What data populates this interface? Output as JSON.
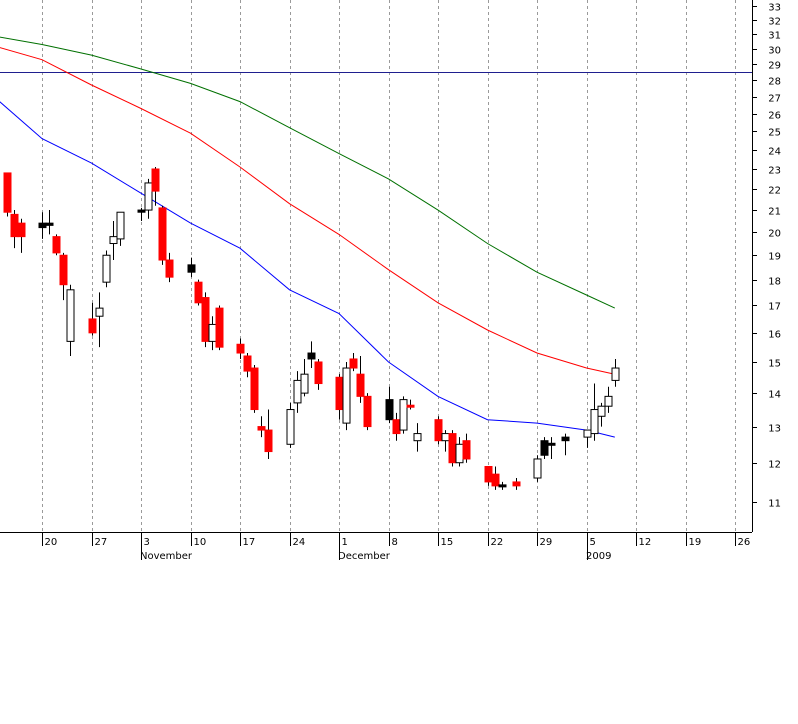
{
  "chart_data": {
    "type": "candlestick",
    "y_axis": {
      "side": "right",
      "scale": "log",
      "ticks": [
        11,
        12,
        13,
        14,
        15,
        16,
        17,
        18,
        19,
        20,
        21,
        22,
        23,
        24,
        25,
        26,
        27,
        28,
        29,
        30,
        31,
        32,
        33
      ],
      "tick_labels": [
        "11",
        "12",
        "13",
        "14",
        "15",
        "16",
        "17",
        "18",
        "19",
        "20",
        "21",
        "22",
        "23",
        "24",
        "25",
        "26",
        "27",
        "28",
        "29",
        "30",
        "31",
        "32",
        "33"
      ],
      "range": [
        10.4,
        33.4
      ]
    },
    "x_axis": {
      "day_ticks": [
        {
          "date": "2008-10-20",
          "label": "20"
        },
        {
          "date": "2008-10-27",
          "label": "27"
        },
        {
          "date": "2008-11-03",
          "label": "3"
        },
        {
          "date": "2008-11-10",
          "label": "10"
        },
        {
          "date": "2008-11-17",
          "label": "17"
        },
        {
          "date": "2008-11-24",
          "label": "24"
        },
        {
          "date": "2008-12-01",
          "label": "1"
        },
        {
          "date": "2008-12-08",
          "label": "8"
        },
        {
          "date": "2008-12-15",
          "label": "15"
        },
        {
          "date": "2008-12-22",
          "label": "22"
        },
        {
          "date": "2008-12-29",
          "label": "29"
        },
        {
          "date": "2009-01-05",
          "label": "5"
        },
        {
          "date": "2009-01-12",
          "label": "12"
        },
        {
          "date": "2009-01-19",
          "label": "19"
        },
        {
          "date": "2009-01-26",
          "label": "26"
        }
      ],
      "period_labels": [
        {
          "date": "2008-11-03",
          "label": "November"
        },
        {
          "date": "2008-12-01",
          "label": "December"
        },
        {
          "date": "2009-01-05",
          "label": "2009"
        }
      ],
      "range": [
        "2008-10-14",
        "2009-01-28"
      ]
    },
    "grid": {
      "vertical_dashed": true,
      "horizontal": false
    },
    "horizontal_line": {
      "value": 28.5,
      "color": "#1f1f8f"
    },
    "colors": {
      "down": "#ff0000",
      "up": "#ffffff",
      "outline": "#000000",
      "black_candle": "#000000"
    },
    "candles": [
      {
        "date": "2008-10-15",
        "open": 22.8,
        "high": 22.8,
        "low": 20.7,
        "close": 20.9,
        "color": "red"
      },
      {
        "date": "2008-10-16",
        "open": 20.8,
        "high": 21.0,
        "low": 19.3,
        "close": 19.8,
        "color": "red"
      },
      {
        "date": "2008-10-17",
        "open": 20.4,
        "high": 20.6,
        "low": 19.1,
        "close": 19.8,
        "color": "red"
      },
      {
        "date": "2008-10-20",
        "open": 20.2,
        "high": 20.9,
        "low": 19.7,
        "close": 20.4,
        "color": "black"
      },
      {
        "date": "2008-10-21",
        "open": 20.4,
        "high": 21.0,
        "low": 19.9,
        "close": 20.3,
        "color": "black"
      },
      {
        "date": "2008-10-22",
        "open": 19.8,
        "high": 19.9,
        "low": 19.0,
        "close": 19.1,
        "color": "red"
      },
      {
        "date": "2008-10-23",
        "open": 19.0,
        "high": 19.1,
        "low": 17.2,
        "close": 17.8,
        "color": "red"
      },
      {
        "date": "2008-10-24",
        "open": 15.7,
        "high": 17.8,
        "low": 15.2,
        "close": 17.6,
        "color": "white"
      },
      {
        "date": "2008-10-27",
        "open": 16.5,
        "high": 17.1,
        "low": 15.9,
        "close": 16.0,
        "color": "red"
      },
      {
        "date": "2008-10-28",
        "open": 16.6,
        "high": 17.5,
        "low": 15.5,
        "close": 16.9,
        "color": "white"
      },
      {
        "date": "2008-10-29",
        "open": 17.9,
        "high": 19.2,
        "low": 17.7,
        "close": 19.0,
        "color": "white"
      },
      {
        "date": "2008-10-30",
        "open": 19.5,
        "high": 20.5,
        "low": 18.8,
        "close": 19.8,
        "color": "white"
      },
      {
        "date": "2008-10-31",
        "open": 19.7,
        "high": 20.9,
        "low": 19.4,
        "close": 20.9,
        "color": "white"
      },
      {
        "date": "2008-11-03",
        "open": 20.9,
        "high": 21.1,
        "low": 20.5,
        "close": 21.0,
        "color": "black"
      },
      {
        "date": "2008-11-04",
        "open": 21.0,
        "high": 22.5,
        "low": 20.6,
        "close": 22.3,
        "color": "white"
      },
      {
        "date": "2008-11-05",
        "open": 23.0,
        "high": 23.1,
        "low": 21.2,
        "close": 21.9,
        "color": "red"
      },
      {
        "date": "2008-11-06",
        "open": 21.1,
        "high": 21.2,
        "low": 18.6,
        "close": 18.8,
        "color": "red"
      },
      {
        "date": "2008-11-07",
        "open": 18.8,
        "high": 19.1,
        "low": 17.9,
        "close": 18.1,
        "color": "red"
      },
      {
        "date": "2008-11-10",
        "open": 18.6,
        "high": 18.9,
        "low": 18.1,
        "close": 18.3,
        "color": "black"
      },
      {
        "date": "2008-11-11",
        "open": 17.9,
        "high": 18.0,
        "low": 17.0,
        "close": 17.1,
        "color": "red"
      },
      {
        "date": "2008-11-12",
        "open": 17.3,
        "high": 17.5,
        "low": 15.5,
        "close": 15.7,
        "color": "red"
      },
      {
        "date": "2008-11-13",
        "open": 15.7,
        "high": 16.6,
        "low": 15.4,
        "close": 16.3,
        "color": "white"
      },
      {
        "date": "2008-11-14",
        "open": 16.9,
        "high": 17.0,
        "low": 15.4,
        "close": 15.5,
        "color": "red"
      },
      {
        "date": "2008-11-17",
        "open": 15.6,
        "high": 15.8,
        "low": 15.1,
        "close": 15.3,
        "color": "red"
      },
      {
        "date": "2008-11-18",
        "open": 15.2,
        "high": 15.3,
        "low": 14.5,
        "close": 14.7,
        "color": "red"
      },
      {
        "date": "2008-11-19",
        "open": 14.8,
        "high": 14.9,
        "low": 13.4,
        "close": 13.5,
        "color": "red"
      },
      {
        "date": "2008-11-20",
        "open": 13.0,
        "high": 13.3,
        "low": 12.7,
        "close": 12.9,
        "color": "red"
      },
      {
        "date": "2008-11-21",
        "open": 12.9,
        "high": 13.5,
        "low": 12.1,
        "close": 12.3,
        "color": "red"
      },
      {
        "date": "2008-11-24",
        "open": 12.5,
        "high": 13.7,
        "low": 12.4,
        "close": 13.5,
        "color": "white"
      },
      {
        "date": "2008-11-25",
        "open": 13.7,
        "high": 14.7,
        "low": 13.4,
        "close": 14.4,
        "color": "white"
      },
      {
        "date": "2008-11-26",
        "open": 14.0,
        "high": 15.1,
        "low": 13.9,
        "close": 14.6,
        "color": "white"
      },
      {
        "date": "2008-11-27",
        "open": 15.1,
        "high": 15.7,
        "low": 14.8,
        "close": 15.3,
        "color": "black"
      },
      {
        "date": "2008-11-28",
        "open": 15.0,
        "high": 15.1,
        "low": 14.1,
        "close": 14.3,
        "color": "red"
      },
      {
        "date": "2008-12-01",
        "open": 14.5,
        "high": 14.6,
        "low": 13.2,
        "close": 13.5,
        "color": "red"
      },
      {
        "date": "2008-12-02",
        "open": 13.1,
        "high": 15.0,
        "low": 12.9,
        "close": 14.8,
        "color": "white"
      },
      {
        "date": "2008-12-03",
        "open": 15.1,
        "high": 15.3,
        "low": 14.7,
        "close": 14.8,
        "color": "red"
      },
      {
        "date": "2008-12-04",
        "open": 14.6,
        "high": 15.2,
        "low": 13.7,
        "close": 13.9,
        "color": "red"
      },
      {
        "date": "2008-12-05",
        "open": 13.9,
        "high": 14.0,
        "low": 12.9,
        "close": 13.0,
        "color": "red"
      },
      {
        "date": "2008-12-08",
        "open": 13.8,
        "high": 14.2,
        "low": 13.1,
        "close": 13.2,
        "color": "black"
      },
      {
        "date": "2008-12-09",
        "open": 13.2,
        "high": 13.4,
        "low": 12.6,
        "close": 12.8,
        "color": "red"
      },
      {
        "date": "2008-12-10",
        "open": 12.9,
        "high": 13.9,
        "low": 12.8,
        "close": 13.8,
        "color": "white"
      },
      {
        "date": "2008-12-11",
        "open": 13.6,
        "high": 13.8,
        "low": 13.5,
        "close": 13.6,
        "color": "red"
      },
      {
        "date": "2008-12-12",
        "open": 12.6,
        "high": 13.1,
        "low": 12.3,
        "close": 12.8,
        "color": "white"
      },
      {
        "date": "2008-12-15",
        "open": 13.2,
        "high": 13.3,
        "low": 12.5,
        "close": 12.6,
        "color": "red"
      },
      {
        "date": "2008-12-16",
        "open": 12.6,
        "high": 12.9,
        "low": 12.3,
        "close": 12.8,
        "color": "white"
      },
      {
        "date": "2008-12-17",
        "open": 12.8,
        "high": 12.9,
        "low": 11.9,
        "close": 12.0,
        "color": "red"
      },
      {
        "date": "2008-12-18",
        "open": 12.0,
        "high": 12.7,
        "low": 11.9,
        "close": 12.5,
        "color": "white"
      },
      {
        "date": "2008-12-19",
        "open": 12.6,
        "high": 12.8,
        "low": 12.0,
        "close": 12.1,
        "color": "red"
      },
      {
        "date": "2008-12-22",
        "open": 11.9,
        "high": 11.9,
        "low": 11.4,
        "close": 11.5,
        "color": "red"
      },
      {
        "date": "2008-12-23",
        "open": 11.7,
        "high": 11.9,
        "low": 11.3,
        "close": 11.4,
        "color": "red"
      },
      {
        "date": "2008-12-24",
        "open": 11.4,
        "high": 11.5,
        "low": 11.3,
        "close": 11.4,
        "color": "black"
      },
      {
        "date": "2008-12-26",
        "open": 11.4,
        "high": 11.6,
        "low": 11.3,
        "close": 11.5,
        "color": "red"
      },
      {
        "date": "2008-12-29",
        "open": 11.6,
        "high": 12.2,
        "low": 11.5,
        "close": 12.1,
        "color": "white"
      },
      {
        "date": "2008-12-30",
        "open": 12.2,
        "high": 12.7,
        "low": 12.1,
        "close": 12.6,
        "color": "black"
      },
      {
        "date": "2008-12-31",
        "open": 12.5,
        "high": 12.7,
        "low": 12.1,
        "close": 12.5,
        "color": "black"
      },
      {
        "date": "2009-01-02",
        "open": 12.6,
        "high": 12.8,
        "low": 12.2,
        "close": 12.7,
        "color": "black"
      },
      {
        "date": "2009-01-05",
        "open": 12.7,
        "high": 12.9,
        "low": 12.4,
        "close": 12.9,
        "color": "white"
      },
      {
        "date": "2009-01-06",
        "open": 12.8,
        "high": 14.3,
        "low": 12.6,
        "close": 13.5,
        "color": "white"
      },
      {
        "date": "2009-01-07",
        "open": 13.3,
        "high": 13.7,
        "low": 13.0,
        "close": 13.6,
        "color": "white"
      },
      {
        "date": "2009-01-08",
        "open": 13.6,
        "high": 14.2,
        "low": 13.4,
        "close": 13.9,
        "color": "white"
      },
      {
        "date": "2009-01-09",
        "open": 14.4,
        "high": 15.1,
        "low": 14.2,
        "close": 14.8,
        "color": "white"
      }
    ],
    "moving_averages": [
      {
        "color": "#0000ff",
        "points": [
          [
            "2008-10-14",
            26.7
          ],
          [
            "2008-10-20",
            24.6
          ],
          [
            "2008-10-27",
            23.3
          ],
          [
            "2008-11-03",
            21.8
          ],
          [
            "2008-11-10",
            20.4
          ],
          [
            "2008-11-17",
            19.3
          ],
          [
            "2008-11-24",
            17.6
          ],
          [
            "2008-12-01",
            16.7
          ],
          [
            "2008-12-08",
            15.0
          ],
          [
            "2008-12-15",
            13.9
          ],
          [
            "2008-12-22",
            13.2
          ],
          [
            "2008-12-29",
            13.1
          ],
          [
            "2009-01-05",
            12.9
          ],
          [
            "2009-01-09",
            12.7
          ]
        ]
      },
      {
        "color": "#ff0000",
        "points": [
          [
            "2008-10-14",
            30.1
          ],
          [
            "2008-10-20",
            29.3
          ],
          [
            "2008-10-27",
            27.7
          ],
          [
            "2008-11-03",
            26.3
          ],
          [
            "2008-11-10",
            24.9
          ],
          [
            "2008-11-17",
            23.1
          ],
          [
            "2008-11-24",
            21.3
          ],
          [
            "2008-12-01",
            19.9
          ],
          [
            "2008-12-08",
            18.4
          ],
          [
            "2008-12-15",
            17.1
          ],
          [
            "2008-12-22",
            16.1
          ],
          [
            "2008-12-29",
            15.3
          ],
          [
            "2009-01-05",
            14.8
          ],
          [
            "2009-01-09",
            14.6
          ]
        ]
      },
      {
        "color": "#007000",
        "points": [
          [
            "2008-10-14",
            30.8
          ],
          [
            "2008-10-20",
            30.3
          ],
          [
            "2008-10-27",
            29.6
          ],
          [
            "2008-11-03",
            28.7
          ],
          [
            "2008-11-10",
            27.8
          ],
          [
            "2008-11-17",
            26.7
          ],
          [
            "2008-11-24",
            25.2
          ],
          [
            "2008-12-01",
            23.8
          ],
          [
            "2008-12-08",
            22.5
          ],
          [
            "2008-12-15",
            21.0
          ],
          [
            "2008-12-22",
            19.5
          ],
          [
            "2008-12-29",
            18.3
          ],
          [
            "2009-01-05",
            17.4
          ],
          [
            "2009-01-09",
            16.9
          ]
        ]
      }
    ]
  }
}
